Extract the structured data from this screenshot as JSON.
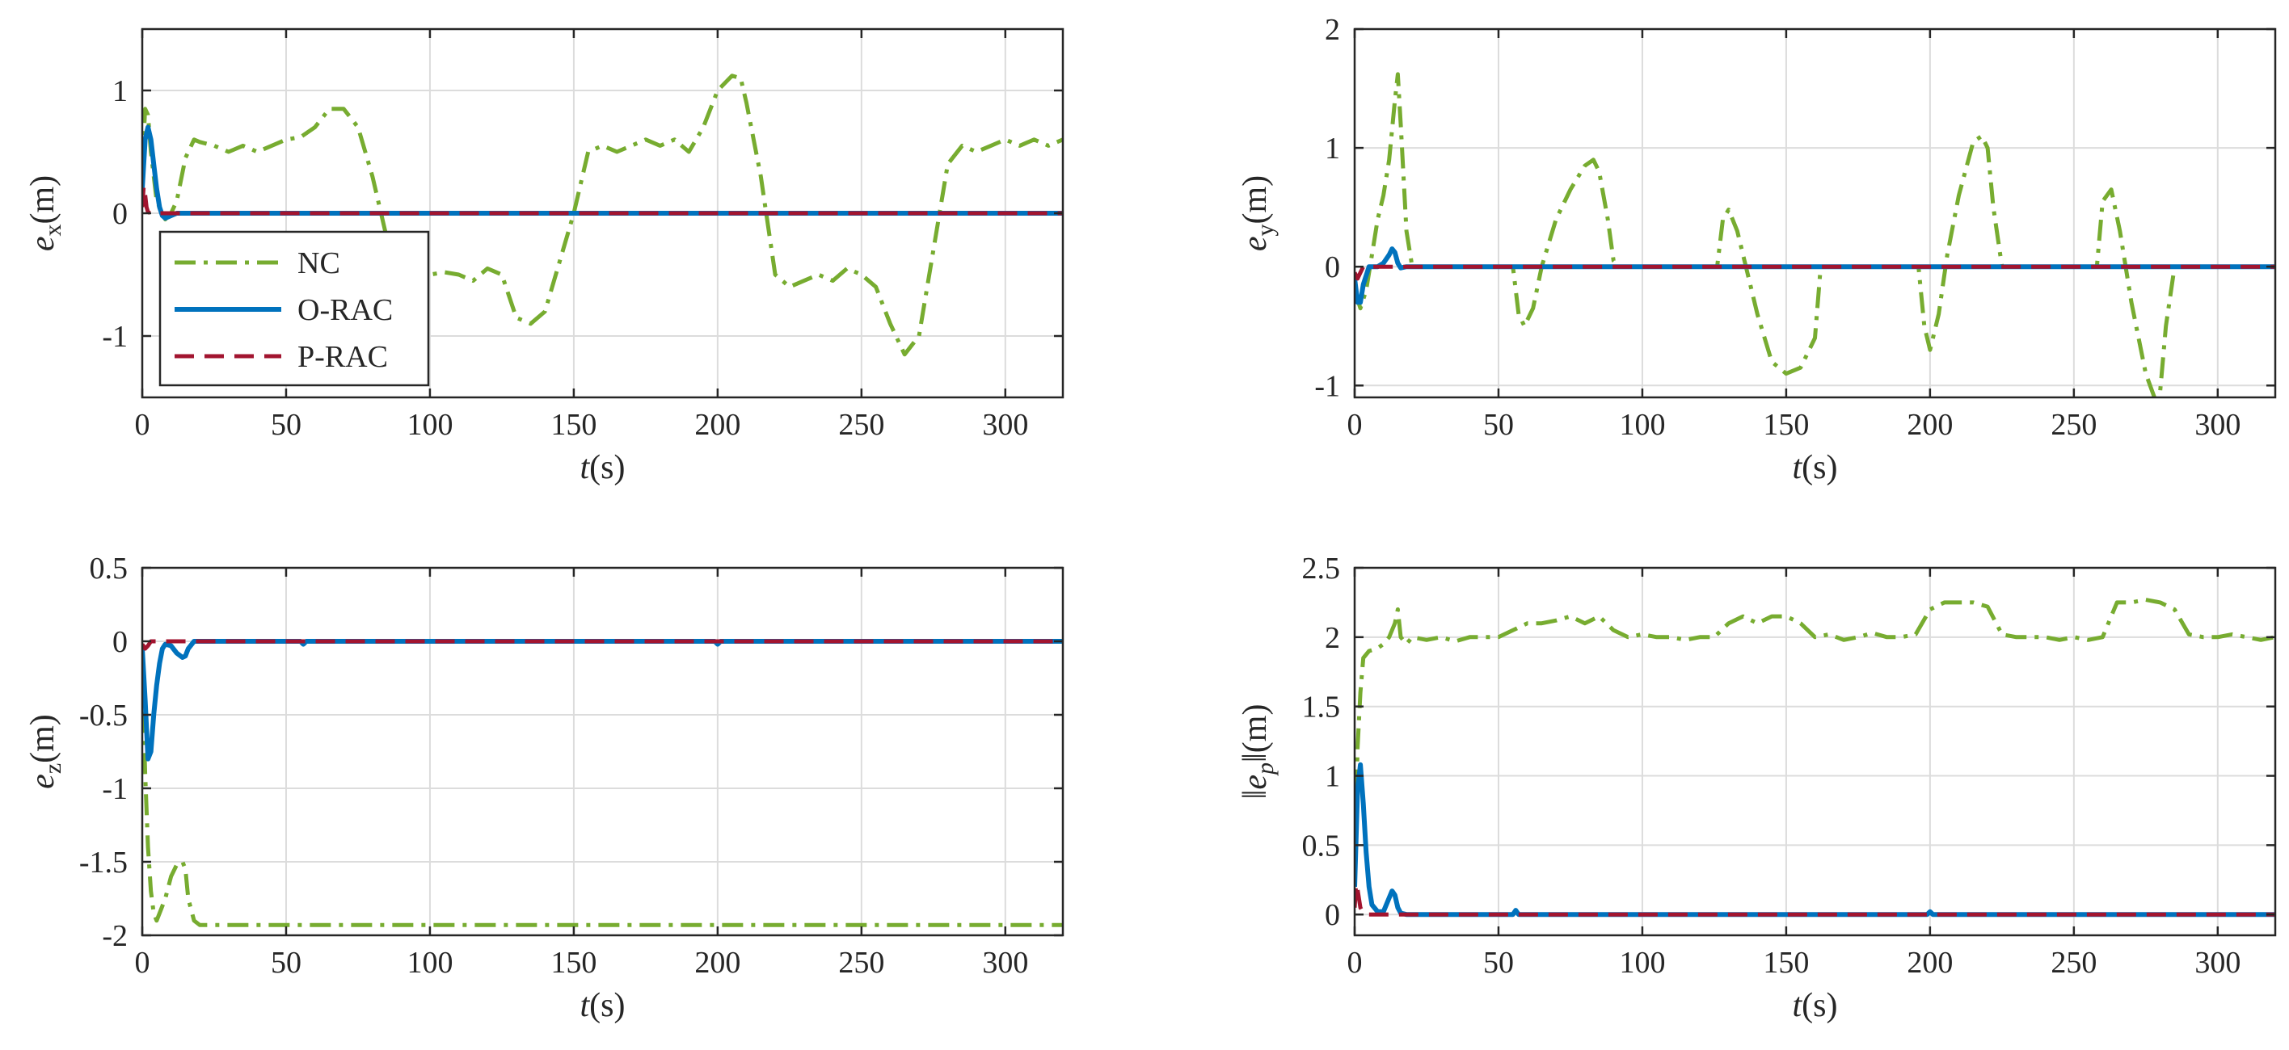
{
  "colors": {
    "NC": "#77AC30",
    "O-RAC": "#0072BD",
    "P-RAC": "#A2142F"
  },
  "legend": {
    "items": [
      "NC",
      "O-RAC",
      "P-RAC"
    ],
    "location": "lower-left of top-left panel"
  },
  "chart_data": [
    {
      "type": "line",
      "ylabel_base": "e",
      "ylabel_sub": "x",
      "ylabel_unit": "(m)",
      "xlabel_var": "t",
      "xlabel_unit": "(s)",
      "xlim": [
        0,
        320
      ],
      "ylim": [
        -1.5,
        1.5
      ],
      "xticks": [
        0,
        50,
        100,
        150,
        200,
        250,
        300
      ],
      "xtick_labels": [
        "0",
        "50",
        "100",
        "150",
        "200",
        "250",
        "300"
      ],
      "yticks": [
        -1,
        0,
        1
      ],
      "ytick_labels": [
        "-1",
        "0",
        "1"
      ],
      "grid": true,
      "series": [
        {
          "name": "NC",
          "style": "dashdot",
          "x": [
            0,
            1,
            2,
            3,
            5,
            8,
            10,
            12,
            15,
            18,
            20,
            25,
            30,
            35,
            40,
            50,
            55,
            60,
            65,
            70,
            75,
            80,
            85,
            90,
            95,
            100,
            105,
            110,
            115,
            120,
            125,
            130,
            135,
            140,
            145,
            150,
            155,
            160,
            165,
            170,
            175,
            180,
            185,
            190,
            195,
            200,
            205,
            208,
            210,
            215,
            220,
            225,
            230,
            235,
            240,
            245,
            250,
            255,
            260,
            265,
            270,
            275,
            280,
            285,
            290,
            295,
            300,
            305,
            310,
            315,
            320
          ],
          "y": [
            0.4,
            0.85,
            0.8,
            0.5,
            0.1,
            -0.05,
            0.0,
            0.1,
            0.45,
            0.6,
            0.58,
            0.55,
            0.5,
            0.55,
            0.5,
            0.6,
            0.62,
            0.7,
            0.85,
            0.85,
            0.7,
            0.3,
            -0.2,
            -0.6,
            -0.55,
            -0.5,
            -0.48,
            -0.5,
            -0.55,
            -0.45,
            -0.5,
            -0.85,
            -0.9,
            -0.8,
            -0.4,
            0.0,
            0.5,
            0.55,
            0.5,
            0.55,
            0.6,
            0.55,
            0.6,
            0.5,
            0.7,
            1.0,
            1.12,
            1.1,
            0.9,
            0.3,
            -0.5,
            -0.6,
            -0.55,
            -0.5,
            -0.55,
            -0.45,
            -0.5,
            -0.6,
            -0.9,
            -1.15,
            -1.0,
            -0.3,
            0.4,
            0.55,
            0.5,
            0.55,
            0.6,
            0.55,
            0.6,
            0.55,
            0.6
          ]
        },
        {
          "name": "O-RAC",
          "style": "solid",
          "x": [
            0,
            1,
            2,
            3,
            4,
            5,
            6,
            7,
            8,
            10,
            12,
            15,
            20,
            320
          ],
          "y": [
            0.2,
            0.6,
            0.7,
            0.6,
            0.4,
            0.2,
            0.05,
            -0.02,
            -0.04,
            -0.02,
            0.0,
            0.0,
            0.0,
            0.0
          ]
        },
        {
          "name": "P-RAC",
          "style": "dashed",
          "x": [
            0,
            0.5,
            1,
            1.5,
            2,
            3,
            5,
            320
          ],
          "y": [
            0.05,
            0.22,
            0.15,
            0.05,
            0.01,
            0.0,
            0.0,
            0.0
          ]
        }
      ]
    },
    {
      "type": "line",
      "ylabel_base": "e",
      "ylabel_sub": "y",
      "ylabel_unit": "(m)",
      "xlabel_var": "t",
      "xlabel_unit": "(s)",
      "xlim": [
        0,
        320
      ],
      "ylim": [
        -1.1,
        2
      ],
      "xticks": [
        0,
        50,
        100,
        150,
        200,
        250,
        300
      ],
      "xtick_labels": [
        "0",
        "50",
        "100",
        "150",
        "200",
        "250",
        "300"
      ],
      "yticks": [
        -1,
        0,
        1,
        2
      ],
      "ytick_labels": [
        "-1",
        "0",
        "1",
        "2"
      ],
      "grid": true,
      "series": [
        {
          "name": "NC",
          "style": "dashdot",
          "x": [
            0,
            2,
            4,
            6,
            8,
            10,
            12,
            14,
            15,
            16,
            18,
            20,
            22,
            55,
            57,
            59,
            62,
            65,
            70,
            75,
            80,
            83,
            85,
            88,
            90,
            92,
            126,
            128,
            130,
            133,
            136,
            140,
            145,
            150,
            155,
            160,
            162,
            196,
            198,
            200,
            203,
            206,
            210,
            215,
            218,
            220,
            222,
            225,
            258,
            260,
            263,
            266,
            270,
            275,
            278,
            280,
            282,
            285,
            320
          ],
          "y": [
            -0.2,
            -0.35,
            -0.2,
            0.1,
            0.4,
            0.6,
            0.9,
            1.4,
            1.62,
            1.2,
            0.3,
            0.0,
            0.0,
            0.0,
            -0.4,
            -0.5,
            -0.35,
            0.0,
            0.4,
            0.65,
            0.85,
            0.9,
            0.8,
            0.4,
            0.05,
            0.0,
            0.0,
            0.4,
            0.48,
            0.3,
            0.0,
            -0.4,
            -0.8,
            -0.9,
            -0.85,
            -0.6,
            0.0,
            0.0,
            -0.5,
            -0.7,
            -0.4,
            0.1,
            0.6,
            1.05,
            1.1,
            1.0,
            0.5,
            0.0,
            0.0,
            0.55,
            0.65,
            0.3,
            -0.3,
            -0.9,
            -1.1,
            -1.05,
            -0.5,
            0.0,
            0.0
          ]
        },
        {
          "name": "O-RAC",
          "style": "solid",
          "x": [
            0,
            1,
            2,
            3,
            5,
            8,
            10,
            12,
            13,
            14,
            15,
            16,
            18,
            320
          ],
          "y": [
            -0.1,
            -0.3,
            -0.3,
            -0.15,
            0.0,
            0.0,
            0.03,
            0.1,
            0.15,
            0.12,
            0.03,
            -0.01,
            0.0,
            0.0
          ]
        },
        {
          "name": "P-RAC",
          "style": "dashed",
          "x": [
            0,
            1,
            2,
            3,
            320
          ],
          "y": [
            -0.05,
            -0.1,
            -0.05,
            0.0,
            0.0
          ]
        }
      ]
    },
    {
      "type": "line",
      "ylabel_base": "e",
      "ylabel_sub": "z",
      "ylabel_unit": "(m)",
      "xlabel_var": "t",
      "xlabel_unit": "(s)",
      "xlim": [
        0,
        320
      ],
      "ylim": [
        -2,
        0.5
      ],
      "xticks": [
        0,
        50,
        100,
        150,
        200,
        250,
        300
      ],
      "xtick_labels": [
        "0",
        "50",
        "100",
        "150",
        "200",
        "250",
        "300"
      ],
      "yticks": [
        -2,
        -1.5,
        -1,
        -0.5,
        0,
        0.5
      ],
      "ytick_labels": [
        "-2",
        "-1.5",
        "-1",
        "-0.5",
        "0",
        "0.5"
      ],
      "grid": true,
      "series": [
        {
          "name": "NC",
          "style": "dashdot",
          "x": [
            0,
            1,
            2,
            3,
            4,
            5,
            6,
            8,
            10,
            12,
            14,
            15,
            16,
            18,
            20,
            25,
            50,
            100,
            150,
            200,
            250,
            300,
            320
          ],
          "y": [
            -0.2,
            -0.9,
            -1.4,
            -1.7,
            -1.85,
            -1.9,
            -1.85,
            -1.75,
            -1.6,
            -1.52,
            -1.5,
            -1.55,
            -1.75,
            -1.9,
            -1.93,
            -1.93,
            -1.93,
            -1.93,
            -1.93,
            -1.93,
            -1.93,
            -1.93,
            -1.93
          ]
        },
        {
          "name": "O-RAC",
          "style": "solid",
          "x": [
            0,
            1,
            2,
            3,
            4,
            5,
            6,
            7,
            8,
            10,
            12,
            14,
            15,
            16,
            18,
            20,
            55,
            56,
            57,
            199,
            200,
            201,
            320
          ],
          "y": [
            -0.05,
            -0.4,
            -0.8,
            -0.75,
            -0.5,
            -0.3,
            -0.15,
            -0.05,
            -0.02,
            -0.03,
            -0.08,
            -0.11,
            -0.1,
            -0.05,
            0.0,
            0.0,
            0.0,
            -0.02,
            0.0,
            0.0,
            -0.02,
            0.0,
            0.0
          ]
        },
        {
          "name": "P-RAC",
          "style": "dashed",
          "x": [
            0,
            1,
            2,
            3,
            5,
            320
          ],
          "y": [
            -0.02,
            -0.05,
            -0.03,
            0.0,
            0.0,
            0.0
          ]
        }
      ]
    },
    {
      "type": "line",
      "ylabel_base": "e",
      "ylabel_sub": "p",
      "ylabel_unit": "(m)",
      "ylabel_norm": true,
      "xlabel_var": "t",
      "xlabel_unit": "(s)",
      "xlim": [
        0,
        320
      ],
      "ylim": [
        -0.15,
        2.5
      ],
      "xticks": [
        0,
        50,
        100,
        150,
        200,
        250,
        300
      ],
      "xtick_labels": [
        "0",
        "50",
        "100",
        "150",
        "200",
        "250",
        "300"
      ],
      "yticks": [
        0,
        0.5,
        1,
        1.5,
        2,
        2.5
      ],
      "ytick_labels": [
        "0",
        "0.5",
        "1",
        "1.5",
        "2",
        "2.5"
      ],
      "grid": true,
      "series": [
        {
          "name": "NC",
          "style": "dashdot",
          "x": [
            0,
            1,
            2,
            3,
            5,
            8,
            10,
            12,
            14,
            15,
            16,
            18,
            20,
            25,
            30,
            35,
            40,
            45,
            50,
            55,
            60,
            65,
            70,
            75,
            80,
            85,
            90,
            95,
            100,
            105,
            110,
            115,
            120,
            125,
            130,
            135,
            140,
            145,
            150,
            155,
            160,
            165,
            170,
            175,
            180,
            185,
            190,
            195,
            200,
            205,
            210,
            215,
            220,
            225,
            230,
            235,
            240,
            245,
            250,
            255,
            260,
            265,
            270,
            275,
            280,
            285,
            290,
            295,
            300,
            305,
            310,
            315,
            320
          ],
          "y": [
            0.3,
            1.2,
            1.6,
            1.85,
            1.9,
            1.92,
            1.95,
            2.0,
            2.1,
            2.2,
            2.0,
            1.95,
            2.0,
            1.98,
            2.0,
            1.97,
            2.0,
            2.0,
            2.0,
            2.05,
            2.1,
            2.1,
            2.12,
            2.15,
            2.1,
            2.15,
            2.05,
            2.0,
            2.02,
            2.0,
            2.0,
            1.98,
            2.0,
            2.0,
            2.1,
            2.15,
            2.1,
            2.15,
            2.15,
            2.1,
            2.0,
            2.02,
            1.98,
            2.0,
            2.03,
            2.0,
            2.0,
            2.02,
            2.2,
            2.25,
            2.25,
            2.25,
            2.22,
            2.02,
            2.0,
            2.0,
            2.0,
            1.98,
            2.0,
            1.98,
            2.0,
            2.25,
            2.25,
            2.27,
            2.25,
            2.2,
            2.02,
            2.0,
            2.0,
            2.02,
            2.0,
            1.98,
            2.0
          ]
        },
        {
          "name": "O-RAC",
          "style": "solid",
          "x": [
            0,
            1,
            2,
            3,
            4,
            5,
            6,
            8,
            10,
            12,
            13,
            14,
            15,
            16,
            18,
            20,
            55,
            56,
            57,
            199,
            200,
            201,
            320
          ],
          "y": [
            0.2,
            0.9,
            1.08,
            0.8,
            0.45,
            0.2,
            0.07,
            0.02,
            0.02,
            0.12,
            0.17,
            0.14,
            0.05,
            0.01,
            0.0,
            0.0,
            0.0,
            0.03,
            0.0,
            0.0,
            0.02,
            0.0,
            0.0
          ]
        },
        {
          "name": "P-RAC",
          "style": "dashed",
          "x": [
            0,
            0.5,
            1,
            2,
            3,
            5,
            320
          ],
          "y": [
            0.05,
            0.22,
            0.18,
            0.05,
            0.01,
            0.0,
            0.0
          ]
        }
      ]
    }
  ]
}
